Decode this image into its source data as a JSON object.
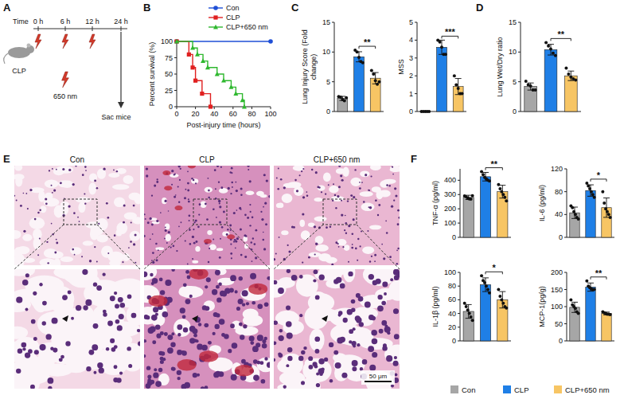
{
  "panels": [
    "A",
    "B",
    "C",
    "D",
    "E",
    "F"
  ],
  "diagram": {
    "time_label": "Time",
    "timepoints": [
      "0 h",
      "6 h",
      "12 h",
      "24 h"
    ],
    "procedure": "CLP",
    "light": "650 nm",
    "endpoint": "Sac mice"
  },
  "images": {
    "columns": [
      "Con",
      "CLP",
      "CLP+650 nm"
    ],
    "scale_bar": "50 μm"
  },
  "group_legend": {
    "labels": [
      "Con",
      "CLP",
      "CLP+650 nm"
    ],
    "colors": [
      "#a6a6a6",
      "#1f7fe6",
      "#f7c564"
    ]
  },
  "chart_data": [
    {
      "type": "line",
      "line_style": "step",
      "x_label": "Post-injury time (hours)",
      "y_label": "Percent survival (%)",
      "xlim": [
        0,
        100
      ],
      "xticks": [
        0,
        20,
        40,
        60,
        80,
        100
      ],
      "ylim": [
        0,
        100
      ],
      "yticks": [
        0,
        25,
        50,
        75,
        100
      ],
      "legend": "top right",
      "series": [
        {
          "name": "Con",
          "color": "#1f4fd6",
          "marker": "circle",
          "x": [
            0,
            100
          ],
          "values": [
            100,
            100
          ]
        },
        {
          "name": "CLP",
          "color": "#e02020",
          "marker": "square",
          "x": [
            0,
            13,
            17,
            20,
            27,
            36
          ],
          "values": [
            100,
            80,
            60,
            40,
            20,
            0
          ]
        },
        {
          "name": "CLP+650 nm",
          "color": "#2fb82f",
          "marker": "triangle",
          "x": [
            0,
            17,
            22,
            28,
            33,
            43,
            50,
            58,
            63,
            70,
            72
          ],
          "values": [
            100,
            90,
            80,
            70,
            60,
            50,
            40,
            30,
            20,
            10,
            0
          ]
        }
      ]
    },
    {
      "type": "bar",
      "y_label": "Lung Injury Score (Fold change)",
      "ylim": [
        0,
        15
      ],
      "yticks": [
        0,
        5,
        10,
        15
      ],
      "tick_labels": "y",
      "colors": [
        "#a6a6a6",
        "#1f7fe6",
        "#f7c564"
      ],
      "values": [
        2.2,
        9.2,
        5.6
      ],
      "errors": [
        0.35,
        0.85,
        0.95
      ],
      "points": [
        [
          2.5,
          2.4,
          2.0,
          1.8,
          2.3
        ],
        [
          10.3,
          10.0,
          9.1,
          8.4,
          8.2
        ],
        [
          6.9,
          6.3,
          5.2,
          4.6,
          5.0
        ]
      ],
      "significance": [
        {
          "from": 1,
          "to": 2,
          "label": "**"
        }
      ]
    },
    {
      "type": "bar",
      "y_label": "MSS",
      "ylim": [
        0,
        5
      ],
      "yticks": [
        0,
        1,
        2,
        3,
        4,
        5
      ],
      "tick_labels": "y",
      "colors": [
        "#a6a6a6",
        "#1f7fe6",
        "#f7c564"
      ],
      "values": [
        0,
        3.6,
        1.4
      ],
      "errors": [
        0,
        0.4,
        0.45
      ],
      "points": [
        [
          0,
          0,
          0,
          0,
          0
        ],
        [
          4.0,
          3.9,
          3.6,
          3.2,
          3.2
        ],
        [
          2.0,
          1.5,
          1.3,
          1.0,
          1.0
        ]
      ],
      "significance": [
        {
          "from": 1,
          "to": 2,
          "label": "***"
        }
      ]
    },
    {
      "type": "bar",
      "y_label": "Lung Wet/Dry ratio",
      "ylim": [
        0,
        15
      ],
      "yticks": [
        0,
        5,
        10,
        15
      ],
      "tick_labels": "y",
      "colors": [
        "#a6a6a6",
        "#1f7fe6",
        "#f7c564"
      ],
      "values": [
        4.2,
        10.4,
        6.0
      ],
      "errors": [
        0.6,
        0.9,
        0.8
      ],
      "points": [
        [
          5.1,
          4.5,
          4.3,
          3.6,
          3.6
        ],
        [
          11.6,
          11.0,
          10.5,
          9.8,
          9.4
        ],
        [
          7.3,
          6.3,
          5.8,
          5.5,
          5.3
        ]
      ],
      "significance": [
        {
          "from": 1,
          "to": 2,
          "label": "**"
        }
      ]
    },
    {
      "type": "bar",
      "y_label": "TNF-α (pg/ml)",
      "ylim": [
        0,
        480
      ],
      "yticks": [
        0,
        100,
        200,
        300,
        400
      ],
      "tick_labels": "y",
      "colors": [
        "#a6a6a6",
        "#1f7fe6",
        "#f7c564"
      ],
      "values": [
        280,
        425,
        320
      ],
      "errors": [
        15,
        30,
        45
      ],
      "points": [
        [
          290,
          285,
          275,
          270,
          268,
          292
        ],
        [
          460,
          440,
          420,
          410,
          400,
          395
        ],
        [
          370,
          340,
          320,
          300,
          280,
          255
        ]
      ],
      "significance": [
        {
          "from": 1,
          "to": 2,
          "label": "**"
        }
      ]
    },
    {
      "type": "bar",
      "y_label": "IL-6 (pg/ml)",
      "ylim": [
        0,
        120
      ],
      "yticks": [
        0,
        40,
        80,
        120
      ],
      "tick_labels": "y",
      "colors": [
        "#a6a6a6",
        "#1f7fe6",
        "#f7c564"
      ],
      "values": [
        43,
        82,
        52
      ],
      "errors": [
        10,
        10,
        17
      ],
      "points": [
        [
          55,
          52,
          45,
          40,
          35,
          32
        ],
        [
          95,
          90,
          85,
          80,
          75,
          70
        ],
        [
          80,
          60,
          50,
          45,
          40,
          35
        ]
      ],
      "significance": [
        {
          "from": 1,
          "to": 2,
          "label": "*"
        }
      ]
    },
    {
      "type": "bar",
      "y_label": "IL-1β (pg/ml)",
      "ylim": [
        0,
        100
      ],
      "yticks": [
        0,
        20,
        40,
        60,
        80,
        100
      ],
      "tick_labels": "y",
      "colors": [
        "#a6a6a6",
        "#1f7fe6",
        "#f7c564"
      ],
      "values": [
        43,
        82,
        60
      ],
      "errors": [
        10,
        10,
        12
      ],
      "points": [
        [
          55,
          50,
          45,
          40,
          35,
          30
        ],
        [
          95,
          88,
          85,
          80,
          75,
          70
        ],
        [
          75,
          65,
          60,
          55,
          50,
          48
        ]
      ],
      "significance": [
        {
          "from": 1,
          "to": 2,
          "label": "*"
        }
      ]
    },
    {
      "type": "bar",
      "y_label": "MCP-1(pg/g)",
      "ylim": [
        0,
        200
      ],
      "yticks": [
        0,
        50,
        100,
        150,
        200
      ],
      "tick_labels": "y",
      "colors": [
        "#a6a6a6",
        "#1f7fe6",
        "#f7c564"
      ],
      "values": [
        98,
        157,
        80
      ],
      "errors": [
        15,
        12,
        4
      ],
      "points": [
        [
          120,
          105,
          100,
          95,
          85,
          80
        ],
        [
          175,
          160,
          155,
          152,
          150,
          150
        ],
        [
          85,
          82,
          80,
          78,
          78,
          77
        ]
      ],
      "significance": [
        {
          "from": 1,
          "to": 2,
          "label": "**"
        }
      ]
    }
  ]
}
